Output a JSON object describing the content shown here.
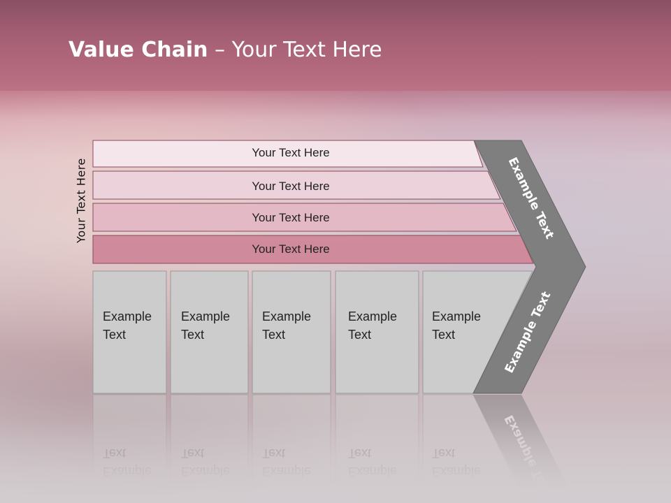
{
  "title": {
    "bold": "Value Chain",
    "rest": " – Your Text Here"
  },
  "side_label": "Your Text Here",
  "rows": [
    {
      "label": "Your Text Here",
      "color": "#f4e6ea"
    },
    {
      "label": "Your Text Here",
      "color": "#ecd2da"
    },
    {
      "label": "Your Text Here",
      "color": "#e2b9c4"
    },
    {
      "label": "Your Text Here",
      "color": "#cf8b9c"
    }
  ],
  "boxes": [
    {
      "line1": "Example",
      "line2": "Text"
    },
    {
      "line1": "Example",
      "line2": "Text"
    },
    {
      "line1": "Example",
      "line2": "Text"
    },
    {
      "line1": "Example",
      "line2": "Text"
    },
    {
      "line1": "Example",
      "line2": "Text"
    }
  ],
  "chevron": {
    "top_label": "Example Text",
    "bottom_label": "Example Text",
    "color": "#7f7f7f"
  },
  "colors": {
    "box_fill": "#cccccc",
    "row_border": "#8a4a5c"
  }
}
